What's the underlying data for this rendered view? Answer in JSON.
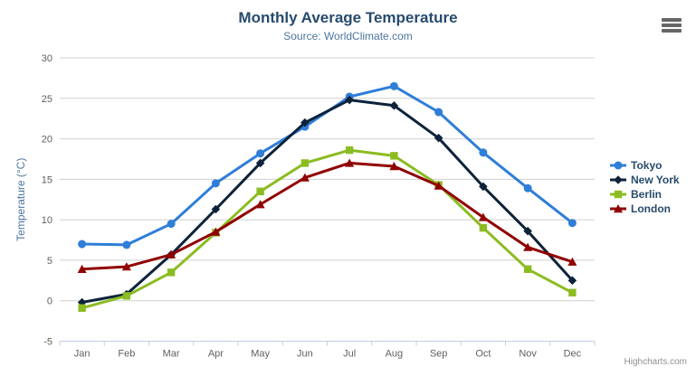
{
  "chart": {
    "title": "Monthly Average Temperature",
    "subtitle": "Source: WorldClimate.com",
    "credit": "Highcharts.com",
    "icons": {
      "export_menu": "hamburger-menu-icon"
    },
    "colors": {
      "title": "#274b6d",
      "subtitle": "#4d759e",
      "axis_labels": "#606060",
      "axis_title": "#4d759e",
      "gridline": "#d0d0d0",
      "axis_line": "#c0d0e0",
      "legend_text": "#274b6d",
      "credit": "#909090"
    }
  },
  "chart_data": {
    "type": "line",
    "title": "Monthly Average Temperature",
    "subtitle": "Source: WorldClimate.com",
    "categories": [
      "Jan",
      "Feb",
      "Mar",
      "Apr",
      "May",
      "Jun",
      "Jul",
      "Aug",
      "Sep",
      "Oct",
      "Nov",
      "Dec"
    ],
    "xlabel": "",
    "ylabel": "Temperature (°C)",
    "ylim": [
      -5,
      30
    ],
    "yticks": [
      -5,
      0,
      5,
      10,
      15,
      20,
      25,
      30
    ],
    "grid": true,
    "legend_position": "right",
    "series": [
      {
        "name": "Tokyo",
        "color": "#2f7ed8",
        "marker": "circle",
        "values": [
          7.0,
          6.9,
          9.5,
          14.5,
          18.2,
          21.5,
          25.2,
          26.5,
          23.3,
          18.3,
          13.9,
          9.6
        ]
      },
      {
        "name": "New York",
        "color": "#0d233a",
        "marker": "diamond",
        "values": [
          -0.2,
          0.8,
          5.7,
          11.3,
          17.0,
          22.0,
          24.8,
          24.1,
          20.1,
          14.1,
          8.6,
          2.5
        ]
      },
      {
        "name": "Berlin",
        "color": "#8bbc21",
        "marker": "square",
        "values": [
          -0.9,
          0.6,
          3.5,
          8.4,
          13.5,
          17.0,
          18.6,
          17.9,
          14.3,
          9.0,
          3.9,
          1.0
        ]
      },
      {
        "name": "London",
        "color": "#910000",
        "marker": "triangle",
        "values": [
          3.9,
          4.2,
          5.7,
          8.5,
          11.9,
          15.2,
          17.0,
          16.6,
          14.2,
          10.3,
          6.6,
          4.8
        ]
      }
    ]
  }
}
